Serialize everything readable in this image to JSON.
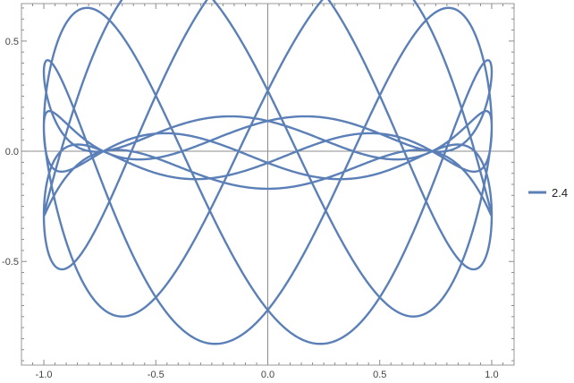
{
  "chart_data": {
    "type": "line",
    "title": "",
    "xlabel": "",
    "ylabel": "",
    "xlim": [
      -1.1,
      1.1
    ],
    "ylim": [
      -0.97,
      0.67
    ],
    "x_ticks": [
      -1.0,
      -0.5,
      0.0,
      0.5,
      1.0
    ],
    "x_tick_labels": [
      "-1.0",
      "-0.5",
      "0.0",
      "0.5",
      "1.0"
    ],
    "y_ticks": [
      -0.5,
      0.0,
      0.5
    ],
    "y_tick_labels": [
      "-0.5",
      "0.0",
      "0.5"
    ],
    "axes_through_origin": true,
    "grid": false,
    "frame": true,
    "legend_position": "right",
    "series": [
      {
        "name": "2.4",
        "color": "#5b7fb7",
        "curve": "parametric",
        "x_function": "sin(t)",
        "y_function": "cos(2.4*t)*(0.36 + 0.53*cos(t))",
        "t_range": [
          0,
          31.416
        ],
        "x": [
          0.0,
          0.1,
          0.2,
          0.3,
          0.4,
          0.5,
          0.6,
          0.7,
          0.8,
          0.9,
          1.0
        ],
        "y": [
          0.0,
          0.0,
          0.0,
          0.0,
          0.0,
          0.0,
          0.0,
          0.0,
          0.0,
          0.0,
          0.0
        ]
      }
    ]
  }
}
